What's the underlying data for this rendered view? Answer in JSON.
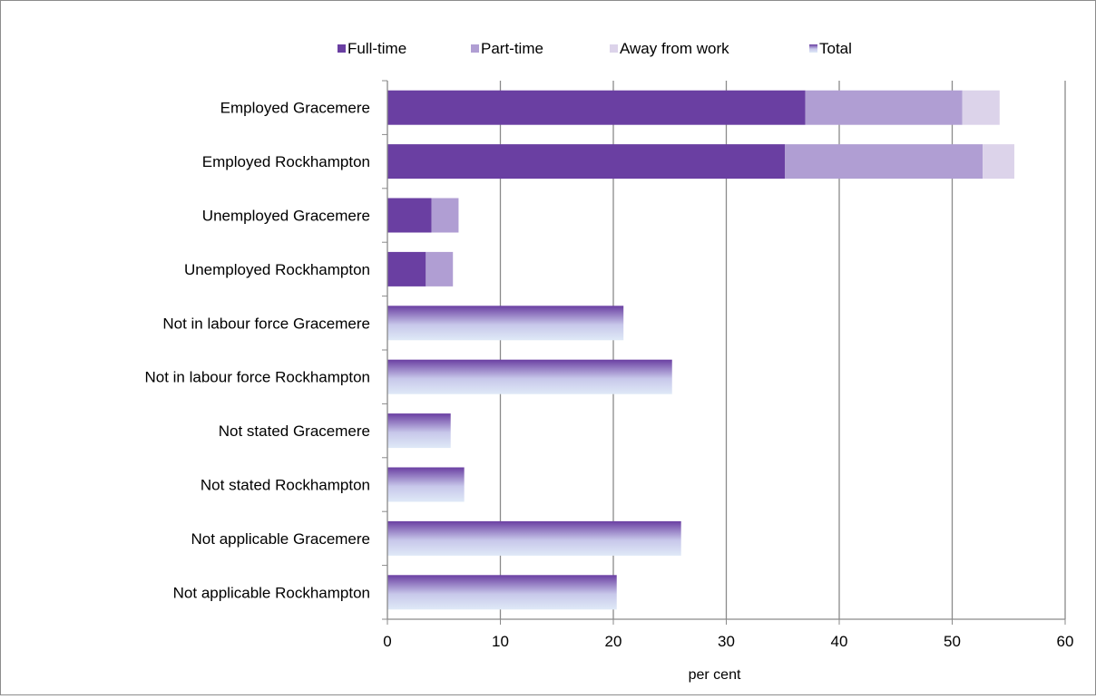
{
  "chart_data": {
    "type": "bar",
    "orientation": "horizontal",
    "stacked": true,
    "categories": [
      "Employed Gracemere",
      "Employed Rockhampton",
      "Unemployed Gracemere",
      "Unemployed Rockhampton",
      "Not in labour force Gracemere",
      "Not in labour force Rockhampton",
      "Not stated Gracemere",
      "Not stated Rockhampton",
      "Not applicable Gracemere",
      "Not applicable Rockhampton"
    ],
    "series": [
      {
        "name": "Full-time",
        "color": "#6a3fa2",
        "values": [
          37.0,
          35.2,
          3.9,
          3.4,
          null,
          null,
          null,
          null,
          null,
          null
        ]
      },
      {
        "name": "Part-time",
        "color": "#b09ed3",
        "values": [
          13.9,
          17.5,
          2.4,
          2.4,
          null,
          null,
          null,
          null,
          null,
          null
        ]
      },
      {
        "name": "Away from work",
        "color": "#dcd3ea",
        "values": [
          3.3,
          2.8,
          null,
          null,
          null,
          null,
          null,
          null,
          null,
          null
        ]
      },
      {
        "name": "Total",
        "color": "#6a3fa2",
        "gradient_to": "#dfe9f7",
        "values": [
          null,
          null,
          null,
          null,
          20.9,
          25.2,
          5.6,
          6.8,
          26.0,
          20.3
        ]
      }
    ],
    "xlabel": "per cent",
    "ylabel": "",
    "xlim": [
      0,
      60
    ],
    "xticks": [
      0,
      10,
      20,
      30,
      40,
      50,
      60
    ],
    "grid": true,
    "legend_position": "top"
  }
}
